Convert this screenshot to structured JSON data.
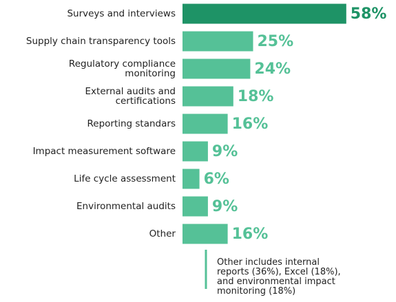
{
  "chart_data": {
    "type": "bar",
    "orientation": "horizontal",
    "categories": [
      "Surveys and interviews",
      "Supply chain transparency tools",
      "Regulatory compliance\nmonitoring",
      "External audits and\ncertifications",
      "Reporting standars",
      "Impact measurement software",
      "Life cycle assessment",
      "Environmental audits",
      "Other"
    ],
    "values": [
      58,
      25,
      24,
      18,
      16,
      9,
      6,
      9,
      16
    ],
    "value_labels": [
      "58%",
      "25%",
      "24%",
      "18%",
      "16%",
      "9%",
      "6%",
      "9%",
      "16%"
    ],
    "colors": [
      "#1e9366",
      "#55c197",
      "#55c197",
      "#55c197",
      "#55c197",
      "#55c197",
      "#55c197",
      "#55c197",
      "#55c197"
    ],
    "label_colors": [
      "#1e9366",
      "#55c197",
      "#55c197",
      "#55c197",
      "#55c197",
      "#55c197",
      "#55c197",
      "#55c197",
      "#55c197"
    ],
    "annotation": "Other includes internal\nreports (36%), Excel (18%),\nand environmental impact\nmonitoring (18%)"
  }
}
